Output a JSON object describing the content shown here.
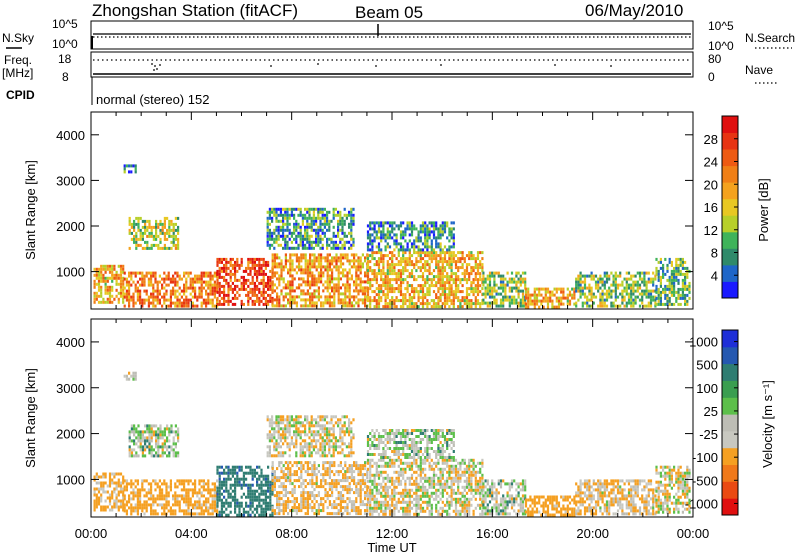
{
  "header": {
    "station": "Zhongshan Station (fitACF)",
    "beam": "Beam 05",
    "date": "06/May/2010"
  },
  "top_panels": {
    "nsky_label": "N.Sky",
    "nsky_ticks": [
      "10^5",
      "10^0"
    ],
    "nsearch_label": "N.Search",
    "nsearch_ticks": [
      "10^5",
      "10^0"
    ],
    "freq_label": "Freq.",
    "freq_unit": "[MHz]",
    "freq_ticks": [
      "18",
      "8"
    ],
    "nave_label": "Nave",
    "nave_ticks": [
      "80",
      "0"
    ],
    "cpid_label": "CPID",
    "cpid_text": "normal (stereo) 152"
  },
  "colors": {
    "power": [
      "#1a1aff",
      "#1f66c8",
      "#2f8a6a",
      "#3fb35a",
      "#b7cf29",
      "#e8c822",
      "#f4a21e",
      "#f07f16",
      "#ee5a12",
      "#e83412",
      "#e01010"
    ],
    "velocity": [
      "#e01010",
      "#ea4a12",
      "#f0791a",
      "#f5a022",
      "#c8c8c0",
      "#bdbdb5",
      "#5cbf4a",
      "#3a9e50",
      "#2f7d72",
      "#2558b0",
      "#1f2fd8"
    ]
  },
  "chart_data": [
    {
      "type": "heatmap",
      "name": "power",
      "xlabel": "",
      "ylabel": "Slant Range [km]",
      "xlim": [
        "00:00",
        "24:00"
      ],
      "ylim": [
        180,
        4500
      ],
      "yticks": [
        1000,
        2000,
        3000,
        4000
      ],
      "colorbar": {
        "label": "Power [dB]",
        "range": [
          0,
          32
        ],
        "ticks": [
          "4",
          "8",
          "12",
          "16",
          "20",
          "24",
          "28"
        ]
      },
      "regions": [
        {
          "t0": 0.1,
          "t1": 1.3,
          "r0": 320,
          "r1": 1150,
          "v": 18
        },
        {
          "t0": 1.3,
          "t1": 5.0,
          "r0": 250,
          "r1": 1000,
          "v": 22
        },
        {
          "t0": 5.0,
          "t1": 7.2,
          "r0": 250,
          "r1": 1300,
          "v": 26
        },
        {
          "t0": 7.2,
          "t1": 11.0,
          "r0": 250,
          "r1": 1400,
          "v": 20
        },
        {
          "t0": 11.0,
          "t1": 15.6,
          "r0": 250,
          "r1": 1450,
          "v": 18
        },
        {
          "t0": 15.6,
          "t1": 17.3,
          "r0": 250,
          "r1": 1000,
          "v": 12
        },
        {
          "t0": 17.3,
          "t1": 19.3,
          "r0": 250,
          "r1": 650,
          "v": 18
        },
        {
          "t0": 19.3,
          "t1": 22.5,
          "r0": 250,
          "r1": 1000,
          "v": 12
        },
        {
          "t0": 22.5,
          "t1": 23.9,
          "r0": 300,
          "r1": 1300,
          "v": 10
        },
        {
          "t0": 1.5,
          "t1": 3.5,
          "r0": 1500,
          "r1": 2200,
          "v": 14
        },
        {
          "t0": 7.0,
          "t1": 10.5,
          "r0": 1500,
          "r1": 2400,
          "v": 8
        },
        {
          "t0": 11.0,
          "t1": 14.5,
          "r0": 1500,
          "r1": 2100,
          "v": 8
        },
        {
          "t0": 1.3,
          "t1": 1.8,
          "r0": 3200,
          "r1": 3350,
          "v": 6
        }
      ]
    },
    {
      "type": "heatmap",
      "name": "velocity",
      "xlabel": "Time UT",
      "ylabel": "Slant Range [km]",
      "xticks": [
        "00:00",
        "04:00",
        "08:00",
        "12:00",
        "16:00",
        "20:00",
        "00:00"
      ],
      "ylim": [
        180,
        4500
      ],
      "yticks": [
        1000,
        2000,
        3000,
        4000
      ],
      "colorbar": {
        "label": "Velocity [m s⁻¹]",
        "ticks": [
          "1000",
          "500",
          "100",
          "25",
          "-25",
          "-100",
          "-500",
          "-1000"
        ]
      },
      "regions": [
        {
          "t0": 0.1,
          "t1": 1.3,
          "r0": 320,
          "r1": 1150,
          "v": -150
        },
        {
          "t0": 1.3,
          "t1": 5.0,
          "r0": 250,
          "r1": 1000,
          "v": -200
        },
        {
          "t0": 5.0,
          "t1": 7.2,
          "r0": 250,
          "r1": 1300,
          "v": 400
        },
        {
          "t0": 7.2,
          "t1": 11.0,
          "r0": 250,
          "r1": 1400,
          "v": -100
        },
        {
          "t0": 11.0,
          "t1": 15.6,
          "r0": 250,
          "r1": 1450,
          "v": -50
        },
        {
          "t0": 15.6,
          "t1": 17.3,
          "r0": 250,
          "r1": 1000,
          "v": 0
        },
        {
          "t0": 17.3,
          "t1": 19.3,
          "r0": 250,
          "r1": 650,
          "v": -200
        },
        {
          "t0": 19.3,
          "t1": 22.5,
          "r0": 250,
          "r1": 1000,
          "v": -100
        },
        {
          "t0": 22.5,
          "t1": 23.9,
          "r0": 300,
          "r1": 1300,
          "v": -50
        },
        {
          "t0": 1.5,
          "t1": 3.5,
          "r0": 1500,
          "r1": 2200,
          "v": 0
        },
        {
          "t0": 7.0,
          "t1": 10.5,
          "r0": 1500,
          "r1": 2400,
          "v": -60
        },
        {
          "t0": 11.0,
          "t1": 14.5,
          "r0": 1500,
          "r1": 2100,
          "v": 0
        },
        {
          "t0": 1.3,
          "t1": 1.8,
          "r0": 3200,
          "r1": 3350,
          "v": 0
        }
      ]
    }
  ]
}
